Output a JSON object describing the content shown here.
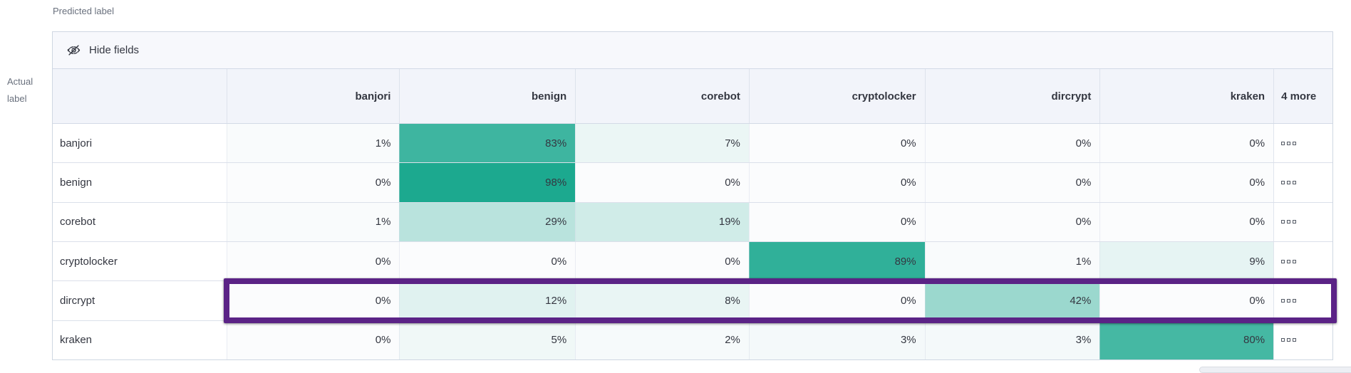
{
  "axis": {
    "predicted_label": "Predicted label",
    "actual_label_line1": "Actual",
    "actual_label_line2": "label"
  },
  "toolbar": {
    "hide_fields_label": "Hide fields"
  },
  "icons": {
    "toolbar_icon": "eye-slash-icon",
    "more_values_icon": "boxes-horizontal-icon"
  },
  "chart_data": {
    "type": "heatmap",
    "title": "Classification confusion matrix (% of actual label predicted as each class)",
    "columns": [
      "banjori",
      "benign",
      "corebot",
      "cryptolocker",
      "dircrypt",
      "kraken"
    ],
    "more_columns_label": "4 more",
    "unit": "%",
    "rows": [
      {
        "label": "banjori",
        "values": [
          1,
          83,
          7,
          0,
          0,
          0
        ],
        "highlighted": false
      },
      {
        "label": "benign",
        "values": [
          0,
          98,
          0,
          0,
          0,
          0
        ],
        "highlighted": false
      },
      {
        "label": "corebot",
        "values": [
          1,
          29,
          19,
          0,
          0,
          0
        ],
        "highlighted": false
      },
      {
        "label": "cryptolocker",
        "values": [
          0,
          0,
          0,
          89,
          1,
          9
        ],
        "highlighted": false
      },
      {
        "label": "dircrypt",
        "values": [
          0,
          12,
          8,
          0,
          42,
          0
        ],
        "highlighted": true
      },
      {
        "label": "kraken",
        "values": [
          0,
          5,
          2,
          3,
          3,
          80
        ],
        "highlighted": false
      }
    ],
    "color_scale": {
      "min_color": "#fbfcfd",
      "max_color": "#17a78d"
    },
    "highlight_color": "#5b2386",
    "legend_position": "none",
    "grid": true
  }
}
